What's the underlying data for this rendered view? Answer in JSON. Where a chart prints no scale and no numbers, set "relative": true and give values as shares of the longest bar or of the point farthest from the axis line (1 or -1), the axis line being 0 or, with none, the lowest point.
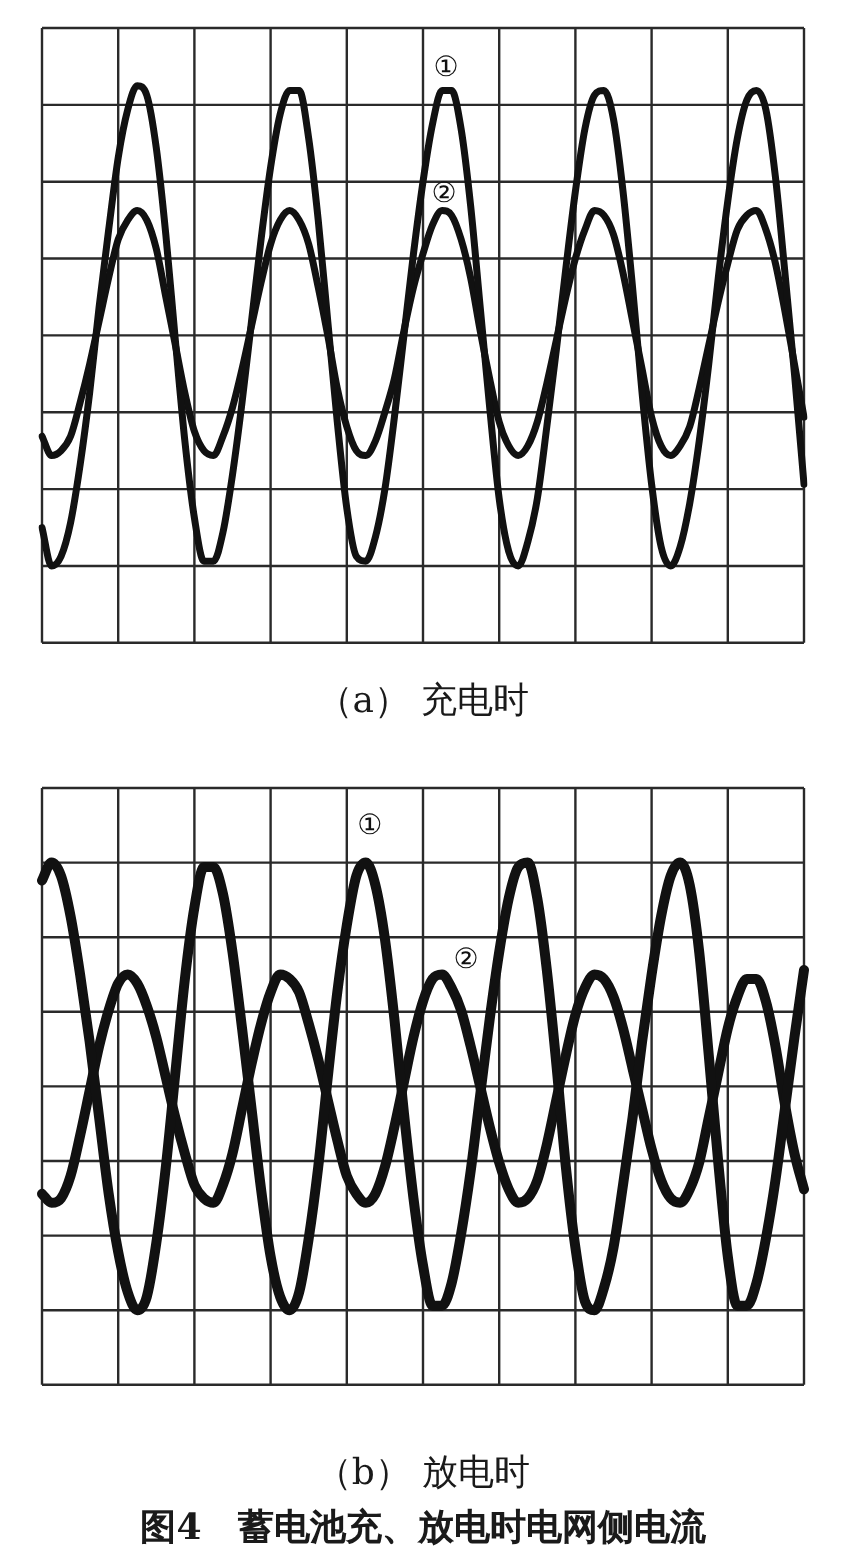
{
  "chart_data": [
    {
      "type": "line",
      "title": "（a） 充电时",
      "relative": true,
      "grid": true,
      "tick_labels": false,
      "categories": [
        null,
        null,
        null,
        null,
        null,
        null,
        null,
        null,
        null,
        null,
        null,
        null,
        null,
        null,
        null,
        null,
        null,
        null,
        null,
        null,
        null,
        null,
        null,
        null,
        null,
        null,
        null,
        null,
        null,
        null,
        null,
        null,
        null,
        null,
        null,
        null,
        null,
        null,
        null,
        null,
        null,
        null,
        null,
        null,
        null,
        null,
        null,
        null,
        null,
        null,
        null,
        null,
        null,
        null,
        null,
        null,
        null,
        null,
        null,
        null,
        null,
        null,
        null,
        null,
        null,
        null,
        null,
        null,
        null,
        null,
        null,
        null,
        null,
        null,
        null,
        null,
        null,
        null,
        null,
        null,
        null
      ],
      "series": [
        {
          "name": "①",
          "color": "#111111",
          "values": [
            0.08,
            0,
            0.02,
            0.09,
            0.21,
            0.36,
            0.54,
            0.7,
            0.85,
            0.95,
            1,
            0.98,
            0.87,
            0.69,
            0.47,
            0.26,
            0.1,
            0.01,
            0.01,
            0.07,
            0.19,
            0.34,
            0.51,
            0.68,
            0.83,
            0.94,
            0.99,
            0.99,
            0.89,
            0.72,
            0.51,
            0.3,
            0.12,
            0.02,
            0.01,
            0.06,
            0.16,
            0.31,
            0.48,
            0.65,
            0.8,
            0.92,
            0.99,
            0.99,
            0.91,
            0.75,
            0.54,
            0.33,
            0.14,
            0.03,
            0,
            0.05,
            0.14,
            0.29,
            0.45,
            0.62,
            0.78,
            0.91,
            0.98,
            0.99,
            0.93,
            0.78,
            0.58,
            0.36,
            0.17,
            0.04,
            0,
            0.04,
            0.13,
            0.26,
            0.42,
            0.6,
            0.76,
            0.89,
            0.97,
            0.99,
            0.95,
            0.81,
            0.61,
            0.4,
            0.17
          ]
        },
        {
          "name": "②",
          "color": "#111111",
          "values": [
            0.27,
            0.23,
            0.24,
            0.27,
            0.34,
            0.42,
            0.51,
            0.6,
            0.68,
            0.72,
            0.74,
            0.72,
            0.66,
            0.56,
            0.46,
            0.36,
            0.28,
            0.24,
            0.23,
            0.27,
            0.33,
            0.41,
            0.5,
            0.59,
            0.67,
            0.72,
            0.74,
            0.72,
            0.67,
            0.58,
            0.48,
            0.37,
            0.29,
            0.24,
            0.23,
            0.26,
            0.32,
            0.39,
            0.49,
            0.58,
            0.65,
            0.71,
            0.74,
            0.73,
            0.68,
            0.6,
            0.49,
            0.39,
            0.3,
            0.25,
            0.23,
            0.25,
            0.3,
            0.38,
            0.47,
            0.56,
            0.64,
            0.7,
            0.74,
            0.73,
            0.69,
            0.61,
            0.51,
            0.41,
            0.31,
            0.25,
            0.23,
            0.25,
            0.29,
            0.37,
            0.46,
            0.55,
            0.63,
            0.7,
            0.73,
            0.74,
            0.7,
            0.63,
            0.53,
            0.42,
            0.31
          ]
        }
      ]
    },
    {
      "type": "line",
      "title": "（b） 放电时",
      "relative": true,
      "grid": true,
      "tick_labels": false,
      "categories": [
        null,
        null,
        null,
        null,
        null,
        null,
        null,
        null,
        null,
        null,
        null,
        null,
        null,
        null,
        null,
        null,
        null,
        null,
        null,
        null,
        null,
        null,
        null,
        null,
        null,
        null,
        null,
        null,
        null,
        null,
        null,
        null,
        null,
        null,
        null,
        null,
        null,
        null,
        null,
        null,
        null,
        null,
        null,
        null,
        null,
        null,
        null,
        null,
        null,
        null,
        null,
        null,
        null,
        null,
        null,
        null,
        null,
        null,
        null,
        null,
        null,
        null,
        null,
        null,
        null,
        null,
        null,
        null,
        null,
        null,
        null,
        null,
        null,
        null,
        null,
        null,
        null,
        null,
        null,
        null,
        null
      ],
      "series": [
        {
          "name": "①",
          "color": "#111111",
          "values": [
            0.96,
            1,
            0.97,
            0.88,
            0.75,
            0.6,
            0.43,
            0.26,
            0.13,
            0.04,
            0,
            0.03,
            0.15,
            0.32,
            0.53,
            0.74,
            0.9,
            0.99,
            0.99,
            0.93,
            0.8,
            0.63,
            0.45,
            0.27,
            0.12,
            0.03,
            0,
            0.04,
            0.16,
            0.32,
            0.52,
            0.71,
            0.86,
            0.97,
            1,
            0.95,
            0.83,
            0.65,
            0.44,
            0.25,
            0.1,
            0.01,
            0.01,
            0.06,
            0.17,
            0.31,
            0.48,
            0.65,
            0.8,
            0.92,
            0.99,
            1,
            0.92,
            0.76,
            0.55,
            0.32,
            0.14,
            0.02,
            0,
            0.05,
            0.14,
            0.28,
            0.43,
            0.6,
            0.75,
            0.88,
            0.97,
            1,
            0.95,
            0.8,
            0.57,
            0.33,
            0.12,
            0.01,
            0.01,
            0.06,
            0.16,
            0.29,
            0.45,
            0.61,
            0.76
          ]
        },
        {
          "name": "②",
          "color": "#111111",
          "values": [
            0.26,
            0.24,
            0.25,
            0.3,
            0.39,
            0.49,
            0.59,
            0.67,
            0.73,
            0.75,
            0.73,
            0.68,
            0.61,
            0.52,
            0.43,
            0.35,
            0.28,
            0.25,
            0.24,
            0.28,
            0.35,
            0.45,
            0.55,
            0.64,
            0.71,
            0.75,
            0.74,
            0.71,
            0.64,
            0.56,
            0.47,
            0.38,
            0.3,
            0.26,
            0.24,
            0.26,
            0.32,
            0.41,
            0.51,
            0.61,
            0.69,
            0.74,
            0.75,
            0.72,
            0.67,
            0.59,
            0.5,
            0.41,
            0.33,
            0.27,
            0.24,
            0.25,
            0.29,
            0.37,
            0.47,
            0.57,
            0.66,
            0.72,
            0.75,
            0.74,
            0.7,
            0.63,
            0.54,
            0.45,
            0.36,
            0.29,
            0.25,
            0.24,
            0.27,
            0.33,
            0.43,
            0.53,
            0.63,
            0.7,
            0.74,
            0.74,
            0.69,
            0.59,
            0.46,
            0.35,
            0.27
          ]
        }
      ],
      "annotations": [
        "图4　蓄电池充、放电时电网侧电流"
      ]
    }
  ]
}
